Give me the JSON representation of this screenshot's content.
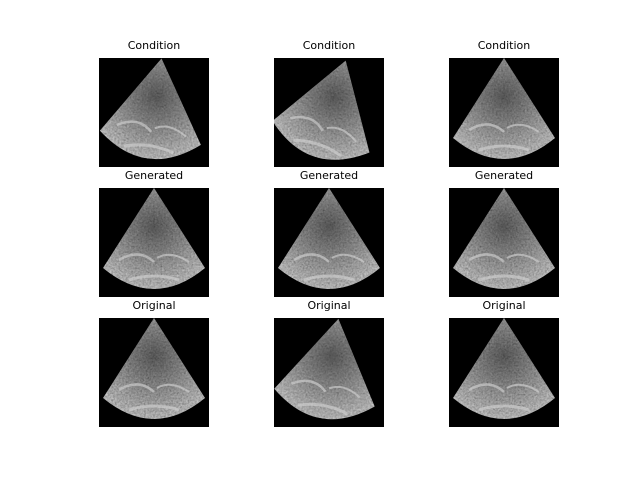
{
  "figure": {
    "background": "#ffffff",
    "panel_background": "#000000",
    "rows": [
      {
        "label": "Condition",
        "panels": [
          {
            "title": "Condition",
            "content": "echocardiogram-sector",
            "tilt": 8
          },
          {
            "title": "Condition",
            "content": "echocardiogram-sector",
            "tilt": 18
          },
          {
            "title": "Condition",
            "content": "echocardiogram-sector",
            "tilt": 0
          }
        ]
      },
      {
        "label": "Generated",
        "panels": [
          {
            "title": "Generated",
            "content": "echocardiogram-sector",
            "tilt": 0
          },
          {
            "title": "Generated",
            "content": "echocardiogram-sector",
            "tilt": 0
          },
          {
            "title": "Generated",
            "content": "echocardiogram-sector",
            "tilt": 0
          }
        ]
      },
      {
        "label": "Original",
        "panels": [
          {
            "title": "Original",
            "content": "echocardiogram-sector",
            "tilt": 0
          },
          {
            "title": "Original",
            "content": "echocardiogram-sector",
            "tilt": 10
          },
          {
            "title": "Original",
            "content": "echocardiogram-sector",
            "tilt": 0
          }
        ]
      }
    ]
  }
}
